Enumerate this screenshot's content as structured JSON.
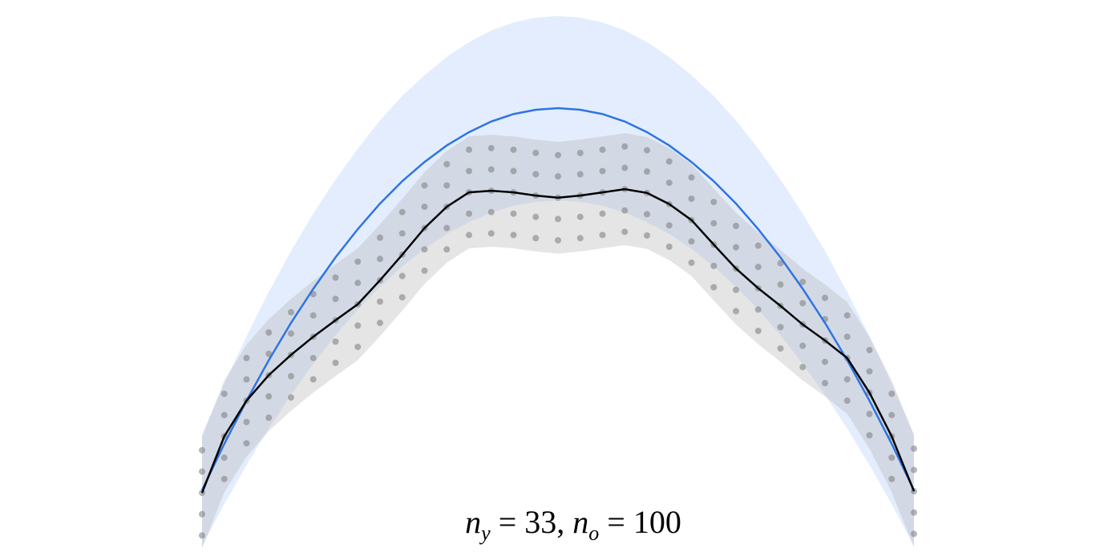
{
  "chart_data": {
    "type": "line",
    "title": [
      "n",
      "y",
      " = 33, ",
      "n",
      "o",
      " = 100"
    ],
    "categories": [
      null,
      null,
      null,
      null,
      null,
      null,
      null,
      null,
      null,
      null,
      null,
      null,
      null,
      null,
      null,
      null,
      null,
      null,
      null,
      null,
      null,
      null,
      null,
      null,
      null,
      null,
      null,
      null,
      null,
      null,
      null,
      null,
      null
    ],
    "ylim": [
      0,
      100
    ],
    "bands": [
      {
        "color": "#dce9fc",
        "lower": [
          0.5,
          8.4,
          15.7,
          22.6,
          28.9,
          34.7,
          40.1,
          44.9,
          49.2,
          53.0,
          56.3,
          59.1,
          61.3,
          63.1,
          64.4,
          65.1,
          65.4,
          65.1,
          64.4,
          63.1,
          61.3,
          59.1,
          56.3,
          53.0,
          49.2,
          44.9,
          40.1,
          34.7,
          28.9,
          22.6,
          15.7,
          8.4,
          0.5
        ],
        "upper": [
          21.5,
          31.0,
          39.9,
          48.2,
          55.9,
          62.9,
          69.3,
          75.1,
          80.4,
          85.0,
          88.9,
          92.3,
          95.1,
          97.3,
          98.8,
          99.7,
          100.0,
          99.7,
          98.8,
          97.3,
          95.1,
          92.3,
          88.9,
          85.0,
          80.4,
          75.1,
          69.3,
          62.9,
          55.9,
          48.2,
          39.9,
          31.0,
          21.5
        ]
      },
      {
        "color": "#b4b4b4",
        "lower": [
          0.0,
          10.6,
          17.3,
          22.1,
          25.9,
          29.3,
          32.4,
          35.4,
          39.9,
          44.7,
          49.7,
          53.7,
          56.4,
          56.7,
          56.4,
          55.8,
          55.4,
          55.8,
          56.4,
          57.0,
          56.3,
          54.2,
          51.2,
          46.6,
          42.1,
          38.4,
          35.1,
          31.6,
          28.6,
          25.3,
          18.8,
          10.6,
          0.3
        ],
        "upper": [
          21.0,
          31.6,
          38.3,
          43.1,
          46.9,
          50.3,
          53.4,
          56.4,
          60.9,
          65.7,
          70.7,
          74.7,
          77.4,
          77.7,
          77.4,
          76.8,
          76.4,
          76.8,
          77.4,
          78.0,
          77.3,
          75.2,
          72.2,
          67.6,
          63.1,
          59.4,
          56.1,
          52.6,
          49.6,
          46.3,
          39.8,
          31.6,
          21.3
        ]
      }
    ],
    "points": {
      "color": "#7a7a7a",
      "values": [
        [
          2.5,
          6.5,
          10.5,
          14.5,
          18.5
        ],
        [
          13.1,
          17.1,
          21.1,
          25.1,
          29.1
        ],
        [
          19.8,
          23.8,
          27.8,
          31.8,
          35.8
        ],
        [
          24.6,
          28.6,
          32.6,
          36.6,
          40.6
        ],
        [
          28.4,
          32.4,
          36.4,
          40.4,
          44.4
        ],
        [
          31.8,
          35.8,
          39.8,
          43.8,
          47.8
        ],
        [
          34.9,
          38.9,
          42.9,
          46.9,
          50.9
        ],
        [
          37.9,
          41.9,
          45.9,
          49.9,
          53.9
        ],
        [
          42.4,
          46.4,
          50.4,
          54.4,
          58.4
        ],
        [
          47.2,
          51.2,
          55.2,
          59.2,
          63.2
        ],
        [
          52.2,
          56.2,
          60.2,
          64.2,
          68.2
        ],
        [
          56.2,
          60.2,
          64.2,
          68.2,
          72.2
        ],
        [
          58.9,
          62.9,
          66.9,
          70.9,
          74.9
        ],
        [
          59.2,
          63.2,
          67.2,
          71.2,
          75.2
        ],
        [
          58.9,
          62.9,
          66.9,
          70.9,
          74.9
        ],
        [
          58.3,
          62.3,
          66.3,
          70.3,
          74.3
        ],
        [
          57.9,
          61.9,
          65.9,
          69.9,
          73.9
        ],
        [
          58.3,
          62.3,
          66.3,
          70.3,
          74.3
        ],
        [
          58.9,
          62.9,
          66.9,
          70.9,
          74.9
        ],
        [
          59.5,
          63.5,
          67.5,
          71.5,
          75.5
        ],
        [
          58.8,
          62.8,
          66.8,
          70.8,
          74.8
        ],
        [
          56.7,
          60.7,
          64.7,
          68.7,
          72.7
        ],
        [
          53.7,
          57.7,
          61.7,
          65.7,
          69.7
        ],
        [
          49.1,
          53.1,
          57.1,
          61.1,
          65.1
        ],
        [
          44.6,
          48.6,
          52.6,
          56.6,
          60.6
        ],
        [
          40.9,
          44.9,
          48.9,
          52.9,
          56.9
        ],
        [
          37.6,
          41.6,
          45.6,
          49.6,
          53.6
        ],
        [
          34.1,
          38.1,
          42.1,
          46.1,
          50.1
        ],
        [
          31.1,
          35.1,
          39.1,
          43.1,
          47.1
        ],
        [
          27.8,
          31.8,
          35.8,
          39.8,
          43.8
        ],
        [
          21.3,
          25.3,
          29.3,
          33.3,
          37.3
        ],
        [
          13.1,
          17.1,
          21.1,
          25.1,
          29.1
        ],
        [
          2.8,
          6.8,
          10.8,
          14.8,
          18.8
        ]
      ]
    },
    "series": [
      {
        "color": "#2f74e2",
        "values": [
          11.0,
          19.7,
          27.8,
          35.4,
          42.4,
          48.8,
          54.7,
          60.0,
          64.8,
          69.0,
          72.6,
          75.7,
          78.2,
          80.2,
          81.6,
          82.4,
          82.7,
          82.4,
          81.6,
          80.2,
          78.2,
          75.7,
          72.6,
          69.0,
          64.8,
          60.0,
          54.7,
          48.8,
          42.4,
          35.4,
          27.8,
          19.7,
          11.0
        ]
      },
      {
        "color": "#000000",
        "values": [
          10.5,
          21.1,
          27.8,
          32.6,
          36.4,
          39.8,
          42.9,
          45.9,
          50.4,
          55.2,
          60.2,
          64.2,
          66.9,
          67.2,
          66.9,
          66.3,
          65.9,
          66.3,
          66.9,
          67.5,
          66.8,
          64.7,
          61.7,
          57.1,
          52.6,
          48.9,
          45.6,
          42.1,
          39.1,
          35.8,
          29.3,
          21.1,
          10.8
        ]
      }
    ]
  }
}
